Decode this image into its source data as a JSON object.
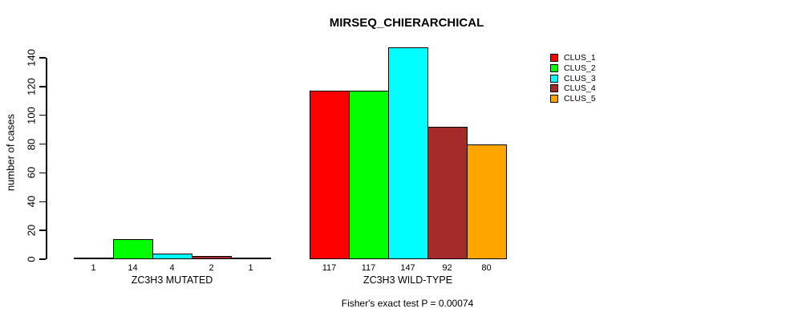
{
  "chart_data": {
    "type": "bar",
    "title": "MIRSEQ_CHIERARCHICAL",
    "ylabel": "number of cases",
    "xlabel": "",
    "ylim": [
      0,
      140
    ],
    "yticks": [
      0,
      20,
      40,
      60,
      80,
      100,
      120,
      140
    ],
    "grid": false,
    "legend_position": "top-right",
    "categories": [
      "ZC3H3 MUTATED",
      "ZC3H3 WILD-TYPE"
    ],
    "series": [
      {
        "name": "CLUS_1",
        "color": "#FF0000",
        "values": [
          1,
          117
        ]
      },
      {
        "name": "CLUS_2",
        "color": "#00FF00",
        "values": [
          14,
          117
        ]
      },
      {
        "name": "CLUS_3",
        "color": "#00FFFF",
        "values": [
          4,
          147
        ]
      },
      {
        "name": "CLUS_4",
        "color": "#A52A2A",
        "values": [
          2,
          92
        ]
      },
      {
        "name": "CLUS_5",
        "color": "#FFA500",
        "values": [
          1,
          80
        ]
      }
    ],
    "bar_value_labels": [
      [
        "1",
        "14",
        "4",
        "2",
        "1"
      ],
      [
        "117",
        "117",
        "147",
        "92",
        "80"
      ]
    ],
    "annotation": "Fisher's exact test P = 0.00074",
    "bar_border_color": "#000000",
    "background_color": "#FFFFFF"
  }
}
